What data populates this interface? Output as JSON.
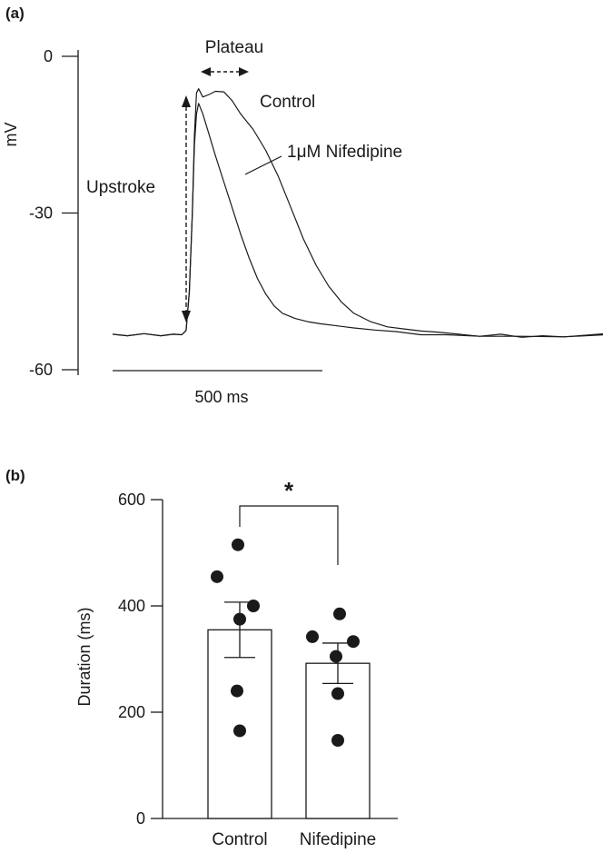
{
  "chart_data": [
    {
      "panel": "(a)",
      "type": "line",
      "ylabel": "mV",
      "ylim": [
        -60,
        0
      ],
      "yticks": [
        0,
        -30,
        -60
      ],
      "time_window_ms": [
        -175,
        1000
      ],
      "scale_bar": {
        "length_ms": 500,
        "label": "500 ms"
      },
      "annotations": {
        "plateau": "Plateau",
        "upstroke": "Upstroke"
      },
      "series": [
        {
          "name": "Control",
          "x_ms": [
            -175,
            -140,
            -100,
            -60,
            -30,
            -10,
            0,
            8,
            15,
            20,
            25,
            30,
            40,
            55,
            70,
            90,
            110,
            130,
            160,
            190,
            220,
            250,
            280,
            310,
            340,
            370,
            400,
            440,
            480,
            520,
            560,
            600,
            650,
            700,
            750,
            800,
            850,
            900,
            950,
            1000
          ],
          "y_mv": [
            -53.2,
            -53.5,
            -53.1,
            -53.5,
            -53.2,
            -53.3,
            -52.5,
            -45,
            -30,
            -15,
            -7,
            -6.2,
            -7.8,
            -7.3,
            -6.7,
            -6.8,
            -8.5,
            -11,
            -14,
            -18,
            -23,
            -29,
            -35,
            -40,
            -44,
            -47,
            -49.2,
            -50.8,
            -51.8,
            -52.2,
            -52.6,
            -52.8,
            -53.2,
            -53.6,
            -53.2,
            -53.8,
            -53.5,
            -53.7,
            -53.4,
            -53.1
          ]
        },
        {
          "name": "1μM Nifedipine",
          "x_ms": [
            -175,
            -140,
            -100,
            -60,
            -30,
            -10,
            0,
            8,
            15,
            20,
            25,
            30,
            40,
            55,
            70,
            90,
            110,
            130,
            150,
            170,
            190,
            210,
            230,
            260,
            290,
            320,
            360,
            400,
            450,
            500,
            560,
            620,
            700,
            800,
            900,
            1000
          ],
          "y_mv": [
            -53.2,
            -53.5,
            -53.1,
            -53.5,
            -53.2,
            -53.3,
            -52.5,
            -45,
            -30,
            -17,
            -11,
            -9,
            -11,
            -15,
            -19,
            -24,
            -29,
            -34,
            -38.5,
            -42.5,
            -45.5,
            -47.8,
            -49.2,
            -50.2,
            -50.8,
            -51.2,
            -51.6,
            -52,
            -52.4,
            -52.7,
            -53.3,
            -53.3,
            -53.6,
            -53.6,
            -53.7,
            -53.3
          ]
        }
      ]
    },
    {
      "panel": "(b)",
      "type": "bar",
      "ylabel": "Duration (ms)",
      "ylim": [
        0,
        600
      ],
      "yticks": [
        0,
        200,
        400,
        600
      ],
      "categories": [
        "Control",
        "Nifedipine"
      ],
      "values": [
        355,
        292
      ],
      "sem": [
        52,
        38
      ],
      "points": [
        [
          515,
          455,
          400,
          375,
          240,
          165
        ],
        [
          385,
          342,
          333,
          305,
          235,
          147
        ]
      ],
      "significance": "*"
    }
  ]
}
